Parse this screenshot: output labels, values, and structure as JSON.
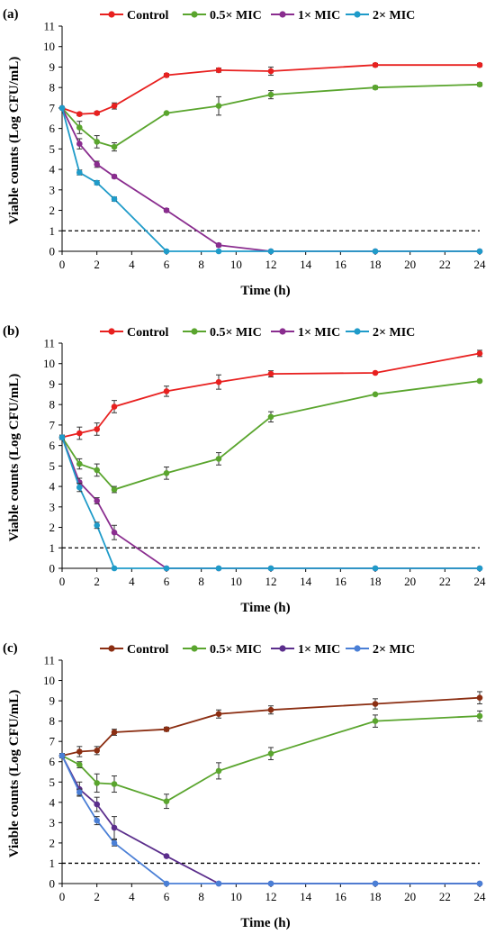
{
  "chart_data": [
    {
      "type": "line",
      "panel_label": "(a)",
      "xlabel": "Time (h)",
      "ylabel": "Viable counts (Log CFU/mL)",
      "x_ticks": [
        "0",
        "2",
        "4",
        "6",
        "8",
        "10",
        "12",
        "14",
        "16",
        "18",
        "20",
        "22",
        "24"
      ],
      "y_ticks": [
        "0",
        "1",
        "2",
        "3",
        "4",
        "5",
        "6",
        "7",
        "8",
        "9",
        "10",
        "11"
      ],
      "xlim": [
        0,
        24
      ],
      "ylim": [
        0,
        11
      ],
      "legend_position": "top",
      "threshold_line": 1,
      "x": [
        0,
        1,
        2,
        3,
        6,
        9,
        12,
        18,
        24
      ],
      "series": [
        {
          "name": "Control",
          "color": "#e8201f",
          "values": [
            7.0,
            6.7,
            6.75,
            7.1,
            8.6,
            8.85,
            8.8,
            9.1,
            9.1
          ],
          "errors": [
            0.05,
            0.08,
            0.08,
            0.15,
            0.08,
            0.1,
            0.2,
            0.08,
            0.08
          ]
        },
        {
          "name": "0.5× MIC",
          "color": "#5aa52e",
          "values": [
            7.0,
            6.05,
            5.35,
            5.1,
            6.75,
            7.1,
            7.65,
            8.0,
            8.15
          ],
          "errors": [
            0.05,
            0.3,
            0.3,
            0.2,
            0.05,
            0.45,
            0.2,
            0.08,
            0.08
          ]
        },
        {
          "name": "1× MIC",
          "color": "#8a2d8f",
          "values": [
            7.0,
            5.25,
            4.25,
            3.65,
            2.0,
            0.3,
            0.0,
            0.0,
            0.0
          ],
          "errors": [
            0.05,
            0.25,
            0.15,
            0.08,
            0.08,
            0.08,
            0.0,
            0.0,
            0.0
          ]
        },
        {
          "name": "2× MIC",
          "color": "#1f9bc9",
          "values": [
            7.0,
            3.85,
            3.35,
            2.55,
            0.0,
            0.0,
            0.0,
            0.0,
            0.0
          ],
          "errors": [
            0.05,
            0.12,
            0.1,
            0.1,
            0.0,
            0.0,
            0.0,
            0.0,
            0.0
          ]
        }
      ]
    },
    {
      "type": "line",
      "panel_label": "(b)",
      "xlabel": "Time (h)",
      "ylabel": "Viable counts (Log CFU/mL)",
      "x_ticks": [
        "0",
        "2",
        "4",
        "6",
        "8",
        "10",
        "12",
        "14",
        "16",
        "18",
        "20",
        "22",
        "24"
      ],
      "y_ticks": [
        "0",
        "1",
        "2",
        "3",
        "4",
        "5",
        "6",
        "7",
        "8",
        "9",
        "10",
        "11"
      ],
      "xlim": [
        0,
        24
      ],
      "ylim": [
        0,
        11
      ],
      "legend_position": "top",
      "threshold_line": 1,
      "x": [
        0,
        1,
        2,
        3,
        6,
        9,
        12,
        18,
        24
      ],
      "series": [
        {
          "name": "Control",
          "color": "#e8201f",
          "values": [
            6.4,
            6.6,
            6.8,
            7.9,
            8.65,
            9.1,
            9.5,
            9.55,
            10.5
          ],
          "errors": [
            0.1,
            0.3,
            0.3,
            0.3,
            0.25,
            0.35,
            0.15,
            0.05,
            0.15
          ]
        },
        {
          "name": "0.5× MIC",
          "color": "#5aa52e",
          "values": [
            6.4,
            5.1,
            4.8,
            3.85,
            4.65,
            5.35,
            7.4,
            8.5,
            9.15
          ],
          "errors": [
            0.1,
            0.25,
            0.3,
            0.15,
            0.3,
            0.3,
            0.25,
            0.05,
            0.05
          ]
        },
        {
          "name": "1× MIC",
          "color": "#8a2d8f",
          "values": [
            6.4,
            4.2,
            3.3,
            1.75,
            0.0,
            0.0,
            0.0,
            0.0,
            0.0
          ],
          "errors": [
            0.1,
            0.2,
            0.15,
            0.35,
            0.0,
            0.0,
            0.0,
            0.0,
            0.0
          ]
        },
        {
          "name": "2× MIC",
          "color": "#1f9bc9",
          "values": [
            6.4,
            3.95,
            2.1,
            0.0,
            0.0,
            0.0,
            0.0,
            0.0,
            0.0
          ],
          "errors": [
            0.1,
            0.2,
            0.15,
            0.0,
            0.0,
            0.0,
            0.0,
            0.0,
            0.0
          ]
        }
      ]
    },
    {
      "type": "line",
      "panel_label": "(c)",
      "xlabel": "Time (h)",
      "ylabel": "Viable counts (Log CFU/mL)",
      "x_ticks": [
        "0",
        "2",
        "4",
        "6",
        "8",
        "10",
        "12",
        "14",
        "16",
        "18",
        "20",
        "22",
        "24"
      ],
      "y_ticks": [
        "0",
        "1",
        "2",
        "3",
        "4",
        "5",
        "6",
        "7",
        "8",
        "9",
        "10",
        "11"
      ],
      "xlim": [
        0,
        24
      ],
      "ylim": [
        0,
        11
      ],
      "legend_position": "top",
      "threshold_line": 1,
      "x": [
        0,
        1,
        2,
        3,
        6,
        9,
        12,
        18,
        24
      ],
      "series": [
        {
          "name": "Control",
          "color": "#8b2e12",
          "values": [
            6.3,
            6.5,
            6.55,
            7.45,
            7.6,
            8.35,
            8.55,
            8.85,
            9.15
          ],
          "errors": [
            0.1,
            0.25,
            0.2,
            0.15,
            0.1,
            0.2,
            0.2,
            0.25,
            0.3
          ]
        },
        {
          "name": "0.5× MIC",
          "color": "#5aa52e",
          "values": [
            6.3,
            5.85,
            4.95,
            4.9,
            4.05,
            5.55,
            6.4,
            8.0,
            8.25
          ],
          "errors": [
            0.1,
            0.15,
            0.45,
            0.4,
            0.35,
            0.4,
            0.3,
            0.3,
            0.25
          ]
        },
        {
          "name": "1× MIC",
          "color": "#5b2e8c",
          "values": [
            6.3,
            4.65,
            3.9,
            2.75,
            1.35,
            0.0,
            0.0,
            0.0,
            0.0
          ],
          "errors": [
            0.1,
            0.35,
            0.35,
            0.55,
            0.05,
            0.0,
            0.0,
            0.0,
            0.0
          ]
        },
        {
          "name": "2× MIC",
          "color": "#4a7fd6",
          "values": [
            6.3,
            4.5,
            3.1,
            2.0,
            0.0,
            0.0,
            0.0,
            0.0,
            0.0
          ],
          "errors": [
            0.1,
            0.15,
            0.2,
            0.15,
            0.0,
            0.0,
            0.0,
            0.0,
            0.0
          ]
        }
      ]
    }
  ]
}
